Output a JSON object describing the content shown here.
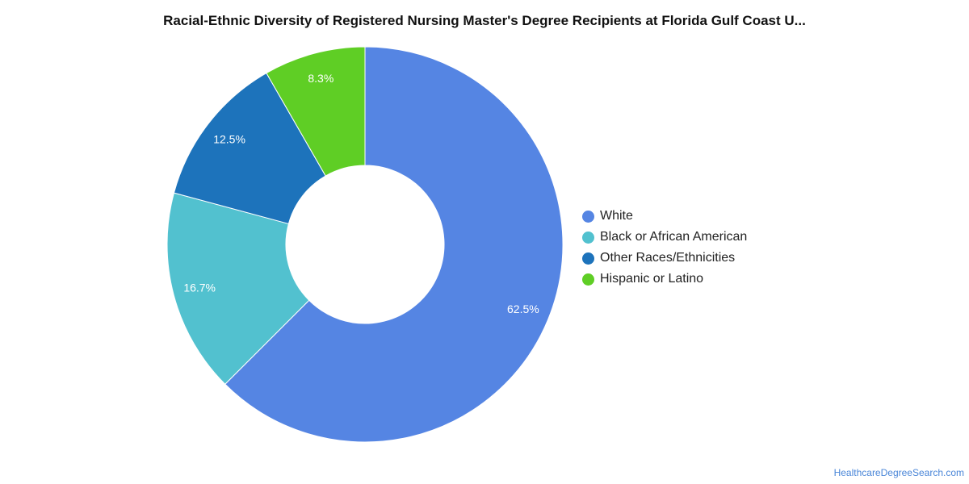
{
  "chart_data": {
    "type": "pie",
    "donut": true,
    "title": "Racial-Ethnic Diversity of Registered Nursing Master's Degree Recipients at Florida Gulf Coast U...",
    "slices": [
      {
        "name": "White",
        "value": 62.5,
        "label": "62.5%",
        "color": "#5585e3"
      },
      {
        "name": "Black or African American",
        "value": 16.7,
        "label": "16.7%",
        "color": "#52c1cf"
      },
      {
        "name": "Other Races/Ethnicities",
        "value": 12.5,
        "label": "12.5%",
        "color": "#1d73bb"
      },
      {
        "name": "Hispanic or Latino",
        "value": 8.3,
        "label": "8.3%",
        "color": "#5fce25"
      }
    ],
    "legend_position": "right"
  },
  "footer": {
    "source": "HealthcareDegreeSearch.com"
  }
}
